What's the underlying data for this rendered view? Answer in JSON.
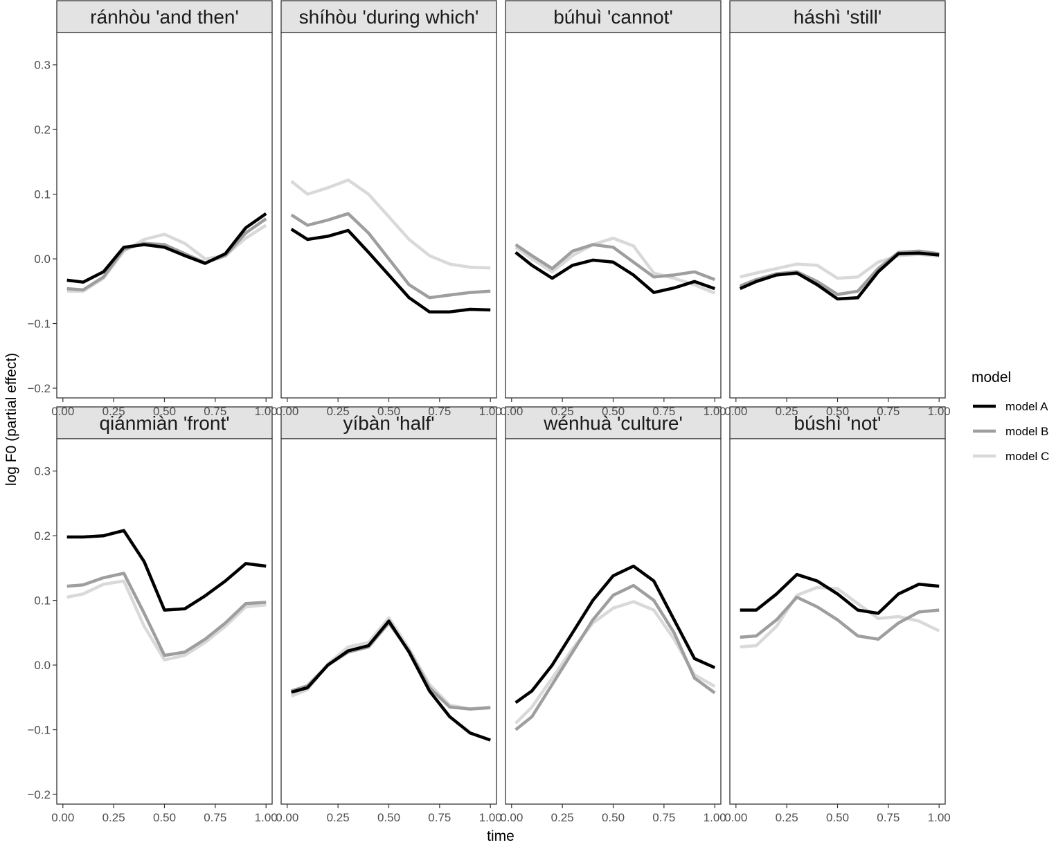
{
  "chart_data": {
    "type": "line",
    "layout": "facet grid 2 rows x 4 columns, shared axes",
    "xlabel": "time",
    "ylabel": "log F0 (partial effect)",
    "xlim": [
      -0.03,
      1.03
    ],
    "ylim": [
      -0.215,
      0.35
    ],
    "x_ticks": [
      0.0,
      0.25,
      0.5,
      0.75,
      1.0
    ],
    "x_tick_labels": [
      "0.00",
      "0.25",
      "0.50",
      "0.75",
      "1.00"
    ],
    "y_ticks": [
      -0.2,
      -0.1,
      0.0,
      0.1,
      0.2,
      0.3
    ],
    "y_tick_labels": [
      "−0.2",
      "−0.1",
      "0.0",
      "0.1",
      "0.2",
      "0.3"
    ],
    "grid": false,
    "legend": {
      "title": "model",
      "placement": "right",
      "entries": [
        {
          "name": "model A",
          "color": "#000000"
        },
        {
          "name": "model B",
          "color": "#9e9e9e"
        },
        {
          "name": "model C",
          "color": "#d9d9d9"
        }
      ]
    },
    "x": [
      0.02,
      0.1,
      0.2,
      0.3,
      0.4,
      0.5,
      0.6,
      0.7,
      0.8,
      0.9,
      1.0
    ],
    "panels": [
      {
        "title": "ránhòu 'and then'",
        "series": [
          {
            "name": "model A",
            "values": [
              -0.033,
              -0.036,
              -0.02,
              0.018,
              0.022,
              0.018,
              0.005,
              -0.007,
              0.008,
              0.048,
              0.07
            ]
          },
          {
            "name": "model B",
            "values": [
              -0.046,
              -0.048,
              -0.028,
              0.015,
              0.024,
              0.022,
              0.008,
              -0.006,
              0.005,
              0.04,
              0.062
            ]
          },
          {
            "name": "model C",
            "values": [
              -0.05,
              -0.05,
              -0.03,
              0.012,
              0.03,
              0.038,
              0.024,
              0.0,
              0.005,
              0.032,
              0.052
            ]
          }
        ]
      },
      {
        "title": "shíhòu 'during which'",
        "series": [
          {
            "name": "model A",
            "values": [
              0.046,
              0.03,
              0.035,
              0.044,
              0.01,
              -0.025,
              -0.06,
              -0.082,
              -0.082,
              -0.078,
              -0.079
            ]
          },
          {
            "name": "model B",
            "values": [
              0.068,
              0.052,
              0.06,
              0.07,
              0.04,
              0.0,
              -0.04,
              -0.06,
              -0.056,
              -0.052,
              -0.05
            ]
          },
          {
            "name": "model C",
            "values": [
              0.12,
              0.1,
              0.11,
              0.122,
              0.1,
              0.065,
              0.03,
              0.005,
              -0.008,
              -0.013,
              -0.014
            ]
          }
        ]
      },
      {
        "title": "búhuì 'cannot'",
        "series": [
          {
            "name": "model A",
            "values": [
              0.01,
              -0.01,
              -0.03,
              -0.01,
              -0.002,
              -0.005,
              -0.025,
              -0.052,
              -0.045,
              -0.035,
              -0.046
            ]
          },
          {
            "name": "model B",
            "values": [
              0.022,
              0.005,
              -0.015,
              0.012,
              0.022,
              0.018,
              -0.005,
              -0.028,
              -0.025,
              -0.02,
              -0.032
            ]
          },
          {
            "name": "model C",
            "values": [
              0.018,
              0.0,
              -0.02,
              0.005,
              0.022,
              0.032,
              0.02,
              -0.022,
              -0.03,
              -0.04,
              -0.053
            ]
          }
        ]
      },
      {
        "title": "háshì 'still'",
        "series": [
          {
            "name": "model A",
            "values": [
              -0.046,
              -0.035,
              -0.025,
              -0.022,
              -0.04,
              -0.062,
              -0.06,
              -0.02,
              0.008,
              0.009,
              0.006
            ]
          },
          {
            "name": "model B",
            "values": [
              -0.042,
              -0.032,
              -0.023,
              -0.02,
              -0.035,
              -0.055,
              -0.05,
              -0.015,
              0.01,
              0.012,
              0.008
            ]
          },
          {
            "name": "model C",
            "values": [
              -0.028,
              -0.022,
              -0.015,
              -0.008,
              -0.01,
              -0.03,
              -0.028,
              -0.005,
              0.005,
              0.007,
              0.004
            ]
          }
        ]
      },
      {
        "title": "qiánmiàn 'front'",
        "series": [
          {
            "name": "model A",
            "values": [
              0.198,
              0.198,
              0.2,
              0.208,
              0.16,
              0.085,
              0.087,
              0.107,
              0.13,
              0.157,
              0.153
            ]
          },
          {
            "name": "model B",
            "values": [
              0.122,
              0.124,
              0.135,
              0.142,
              0.08,
              0.015,
              0.02,
              0.04,
              0.065,
              0.095,
              0.097
            ]
          },
          {
            "name": "model C",
            "values": [
              0.105,
              0.11,
              0.125,
              0.13,
              0.06,
              0.008,
              0.015,
              0.035,
              0.06,
              0.09,
              0.093
            ]
          }
        ]
      },
      {
        "title": "yíbàn 'half'",
        "series": [
          {
            "name": "model A",
            "values": [
              -0.042,
              -0.035,
              0.0,
              0.022,
              0.03,
              0.068,
              0.02,
              -0.04,
              -0.08,
              -0.105,
              -0.116
            ]
          },
          {
            "name": "model B",
            "values": [
              -0.04,
              -0.032,
              0.0,
              0.02,
              0.028,
              0.065,
              0.022,
              -0.035,
              -0.065,
              -0.068,
              -0.066
            ]
          },
          {
            "name": "model C",
            "values": [
              -0.048,
              -0.038,
              0.002,
              0.028,
              0.035,
              0.073,
              0.025,
              -0.03,
              -0.062,
              -0.068,
              -0.065
            ]
          }
        ]
      },
      {
        "title": "wénhuà 'culture'",
        "series": [
          {
            "name": "model A",
            "values": [
              -0.058,
              -0.04,
              0.0,
              0.05,
              0.1,
              0.138,
              0.153,
              0.13,
              0.07,
              0.01,
              -0.004
            ]
          },
          {
            "name": "model B",
            "values": [
              -0.1,
              -0.08,
              -0.03,
              0.02,
              0.07,
              0.108,
              0.123,
              0.1,
              0.05,
              -0.02,
              -0.043
            ]
          },
          {
            "name": "model C",
            "values": [
              -0.09,
              -0.065,
              -0.02,
              0.025,
              0.065,
              0.088,
              0.098,
              0.085,
              0.04,
              -0.015,
              -0.033
            ]
          }
        ]
      },
      {
        "title": "búshì 'not'",
        "series": [
          {
            "name": "model A",
            "values": [
              0.085,
              0.085,
              0.11,
              0.14,
              0.13,
              0.11,
              0.085,
              0.08,
              0.11,
              0.125,
              0.122
            ]
          },
          {
            "name": "model B",
            "values": [
              0.043,
              0.045,
              0.07,
              0.105,
              0.09,
              0.07,
              0.045,
              0.04,
              0.065,
              0.082,
              0.085
            ]
          },
          {
            "name": "model C",
            "values": [
              0.028,
              0.03,
              0.06,
              0.108,
              0.12,
              0.118,
              0.095,
              0.072,
              0.075,
              0.068,
              0.053
            ]
          }
        ]
      }
    ]
  }
}
